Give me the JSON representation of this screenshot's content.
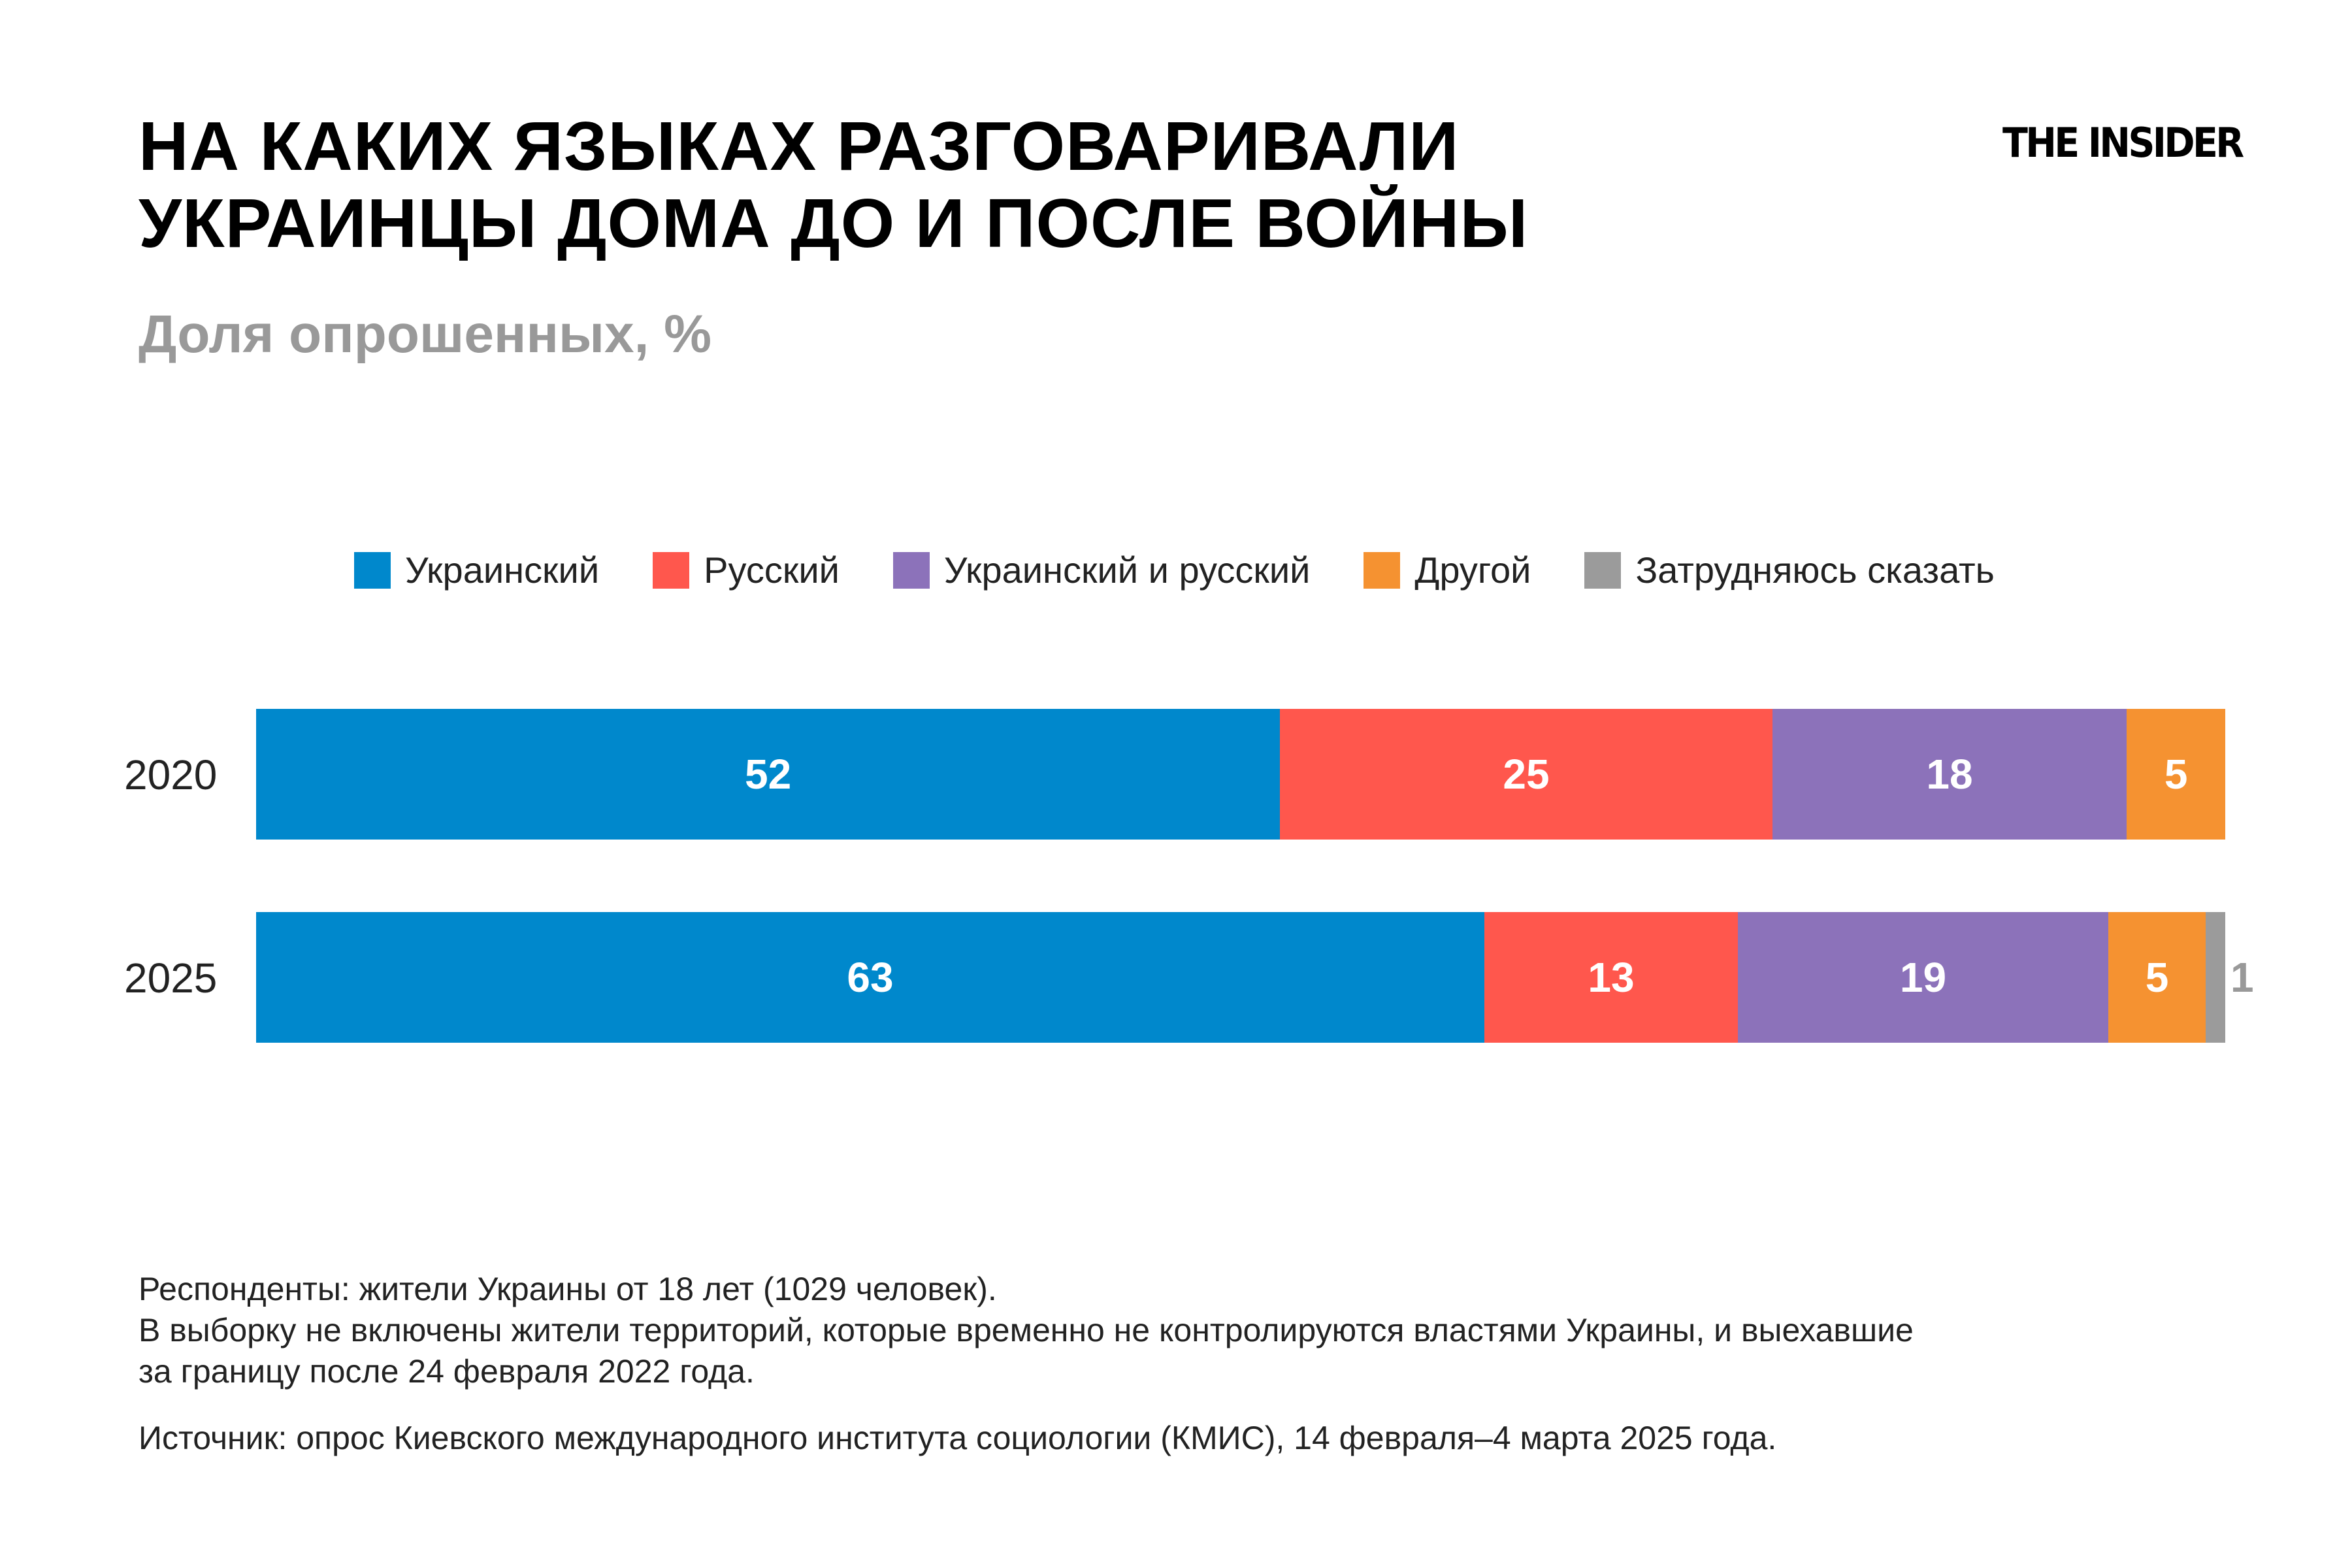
{
  "title_lines": [
    "НА КАКИХ ЯЗЫКАХ РАЗГОВАРИВАЛИ",
    "УКРАИНЦЫ ДОМА ДО И ПОСЛЕ ВОЙНЫ"
  ],
  "subtitle": "Доля опрошенных, %",
  "logo": "THE INSIDER",
  "chart_data": {
    "type": "bar",
    "orientation": "horizontal",
    "stacked": true,
    "categories": [
      "2020",
      "2025"
    ],
    "series": [
      {
        "name": "Украинский",
        "color": "#0088CC",
        "values": [
          52,
          63
        ]
      },
      {
        "name": "Русский",
        "color": "#FF574D",
        "values": [
          25,
          13
        ]
      },
      {
        "name": "Украинский и русский",
        "color": "#8C72BA",
        "values": [
          18,
          19
        ]
      },
      {
        "name": "Другой",
        "color": "#F59231",
        "values": [
          5,
          5
        ]
      },
      {
        "name": "Затрудняюсь сказать",
        "color": "#9B9B9B",
        "values": [
          null,
          1
        ]
      }
    ],
    "legend": "top",
    "grid": false
  },
  "footer": {
    "notes": [
      "Респонденты: жители Украины от 18 лет (1029 человек).",
      "В выборку не включены жители территорий, которые временно не контролируются властями Украины, и выехавшие",
      "за границу после 24 февраля 2022 года."
    ],
    "source": "Источник: опрос Киевского международного института социологии (КМИС), 14 февраля–4 марта 2025 года."
  }
}
